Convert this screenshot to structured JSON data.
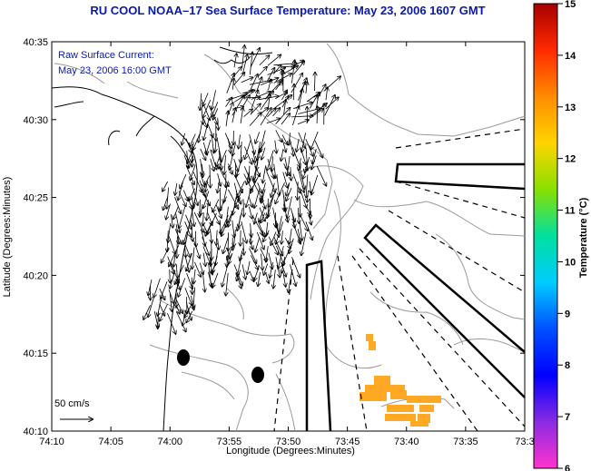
{
  "title": "RU COOL  NOAA–17  Sea Surface Temperature:  May 23, 2006 1607 GMT",
  "annotation": {
    "line1": "Raw Surface Current:",
    "line2": "May 23, 2006 16:00 GMT"
  },
  "scale_label": "50 cm/s",
  "axes": {
    "xlabel": "Longitude (Degrees:Minutes)",
    "ylabel": "Latitude (Degrees:Minutes)",
    "xticks": [
      "74:10",
      "74:05",
      "74:00",
      "73:55",
      "73:50",
      "73:45",
      "73:40",
      "73:35",
      "73:3"
    ],
    "yticks": [
      "40:35",
      "40:30",
      "40:25",
      "40:20",
      "40:15",
      "40:10"
    ]
  },
  "colorbar": {
    "label": "Temperature (°C)",
    "ticks": [
      "15",
      "14",
      "13",
      "12",
      "11",
      "10",
      "9",
      "8",
      "7",
      "6"
    ]
  }
}
